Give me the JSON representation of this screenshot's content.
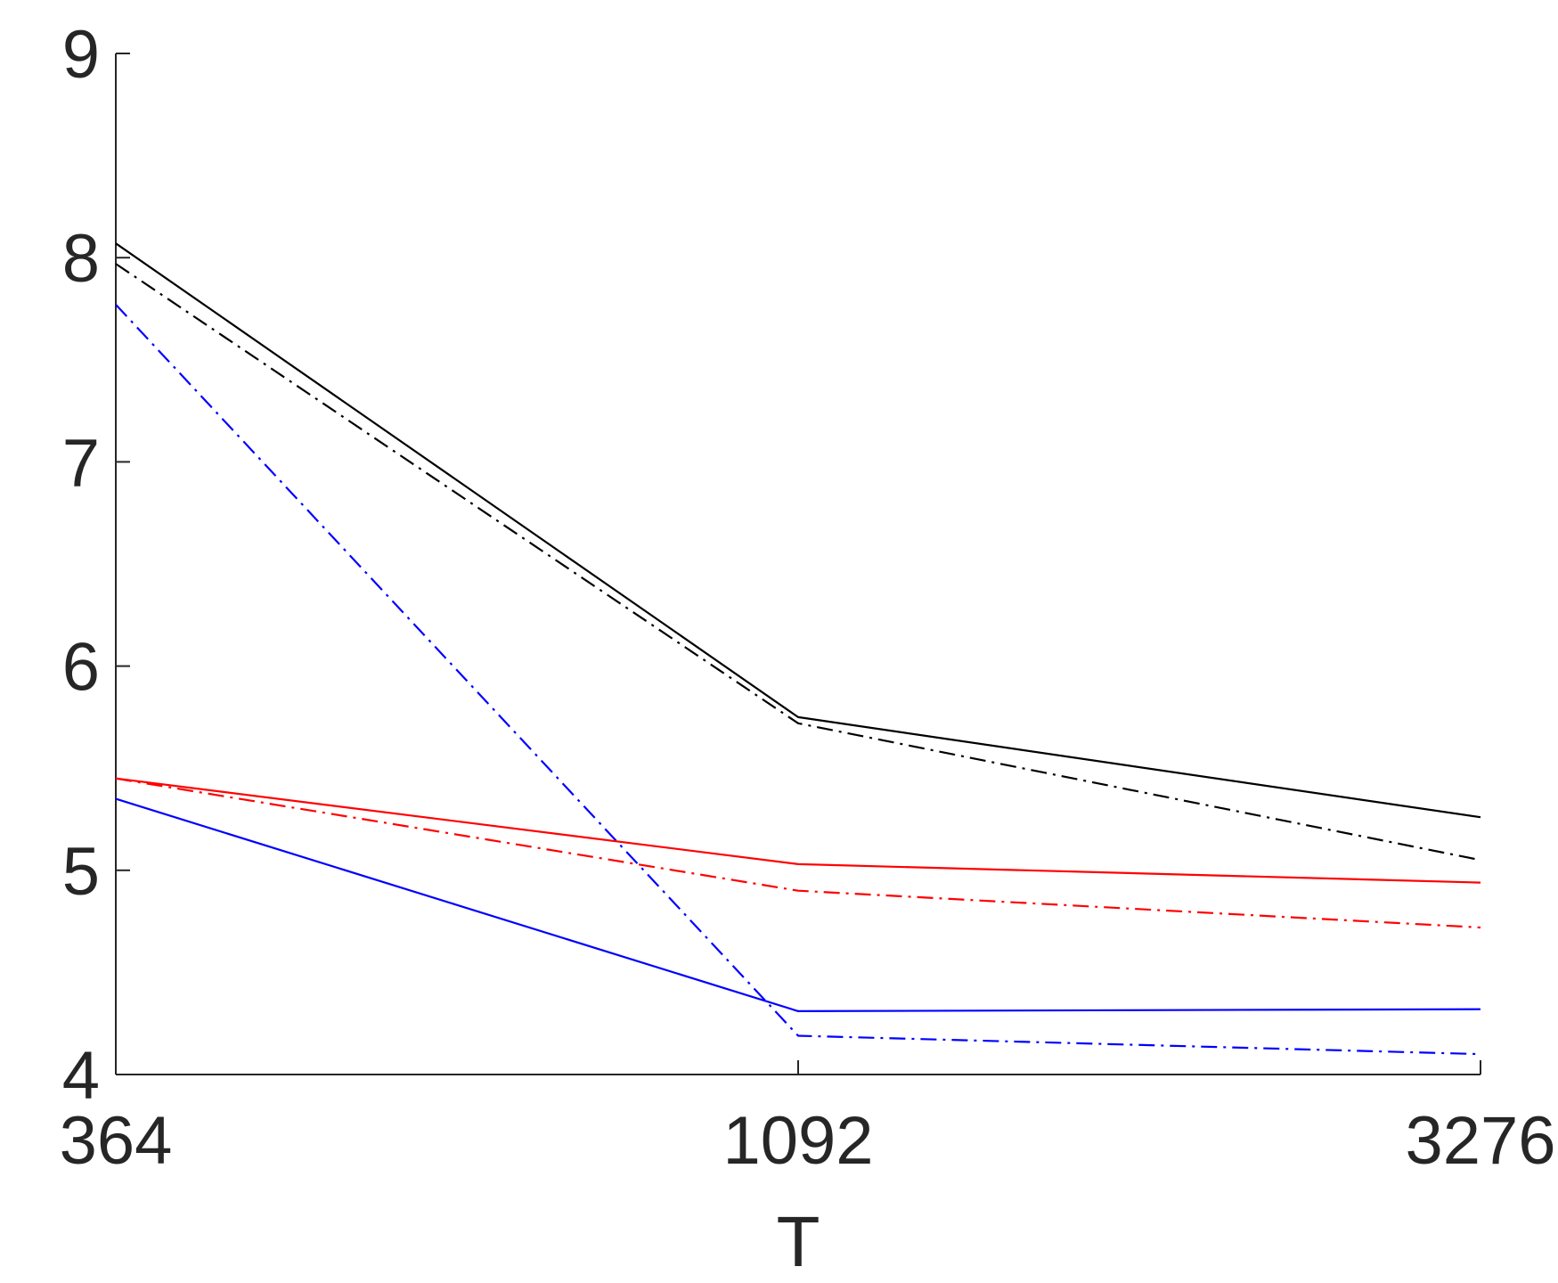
{
  "chart_data": {
    "type": "line",
    "title": "",
    "xlabel": "T",
    "ylabel": "",
    "x_scale": "log",
    "x": [
      364,
      1092,
      3276
    ],
    "x_tick_labels": [
      "364",
      "1092",
      "3276"
    ],
    "y_ticks": [
      4,
      5,
      6,
      7,
      8,
      9
    ],
    "y_tick_labels": [
      "4",
      "5",
      "6",
      "7",
      "8",
      "9"
    ],
    "xlim": [
      364,
      3276
    ],
    "ylim": [
      4,
      9
    ],
    "grid": false,
    "legend": "none",
    "series": [
      {
        "color": "#000000",
        "style": "solid",
        "values": [
          8.07,
          5.75,
          5.26
        ]
      },
      {
        "color": "#000000",
        "style": "dashdot",
        "values": [
          7.97,
          5.72,
          5.05
        ]
      },
      {
        "color": "#0000ff",
        "style": "dashdot",
        "values": [
          7.77,
          4.19,
          4.1
        ]
      },
      {
        "color": "#ff0000",
        "style": "solid",
        "values": [
          5.45,
          5.03,
          4.94
        ]
      },
      {
        "color": "#ff0000",
        "style": "dashdot",
        "values": [
          5.45,
          4.9,
          4.72
        ]
      },
      {
        "color": "#0000ff",
        "style": "solid",
        "values": [
          5.35,
          4.31,
          4.32
        ]
      }
    ]
  }
}
